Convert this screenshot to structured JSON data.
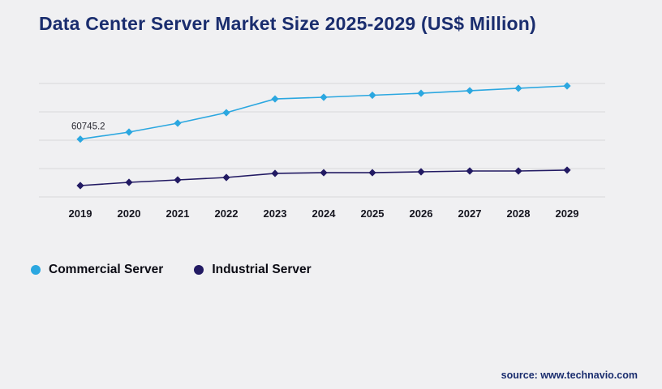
{
  "page": {
    "title": "Data Center Server Market Size 2025-2029 (US$ Million)",
    "source": "source: www.technavio.com",
    "background": "#f0f0f2"
  },
  "legend": [
    {
      "label": "Commercial Server",
      "color": "#2ba7e0"
    },
    {
      "label": "Industrial Server",
      "color": "#221a63"
    }
  ],
  "chart_data": {
    "type": "line",
    "title": "Data Center Server Market Size 2025-2029 (US$ Million)",
    "categories": [
      "2019",
      "2020",
      "2021",
      "2022",
      "2023",
      "2024",
      "2025",
      "2026",
      "2027",
      "2028",
      "2029"
    ],
    "series": [
      {
        "name": "Commercial Server",
        "color": "#2ba7e0",
        "values": [
          60745.2,
          65700,
          72000,
          79400,
          89100,
          90300,
          91700,
          93100,
          94900,
          96600,
          98300
        ]
      },
      {
        "name": "Industrial Server",
        "color": "#221a63",
        "values": [
          28000,
          30300,
          32000,
          33700,
          36600,
          37100,
          37100,
          37700,
          38300,
          38300,
          38900
        ]
      }
    ],
    "annotations": [
      {
        "series": "Commercial Server",
        "category": "2019",
        "text": "60745.2"
      }
    ],
    "xlabel": "",
    "ylabel": "",
    "ylim": [
      20000,
      100000
    ],
    "gridlines": 5,
    "grid": "horizontal-only",
    "legend_position": "bottom-left",
    "marker": "diamond"
  }
}
